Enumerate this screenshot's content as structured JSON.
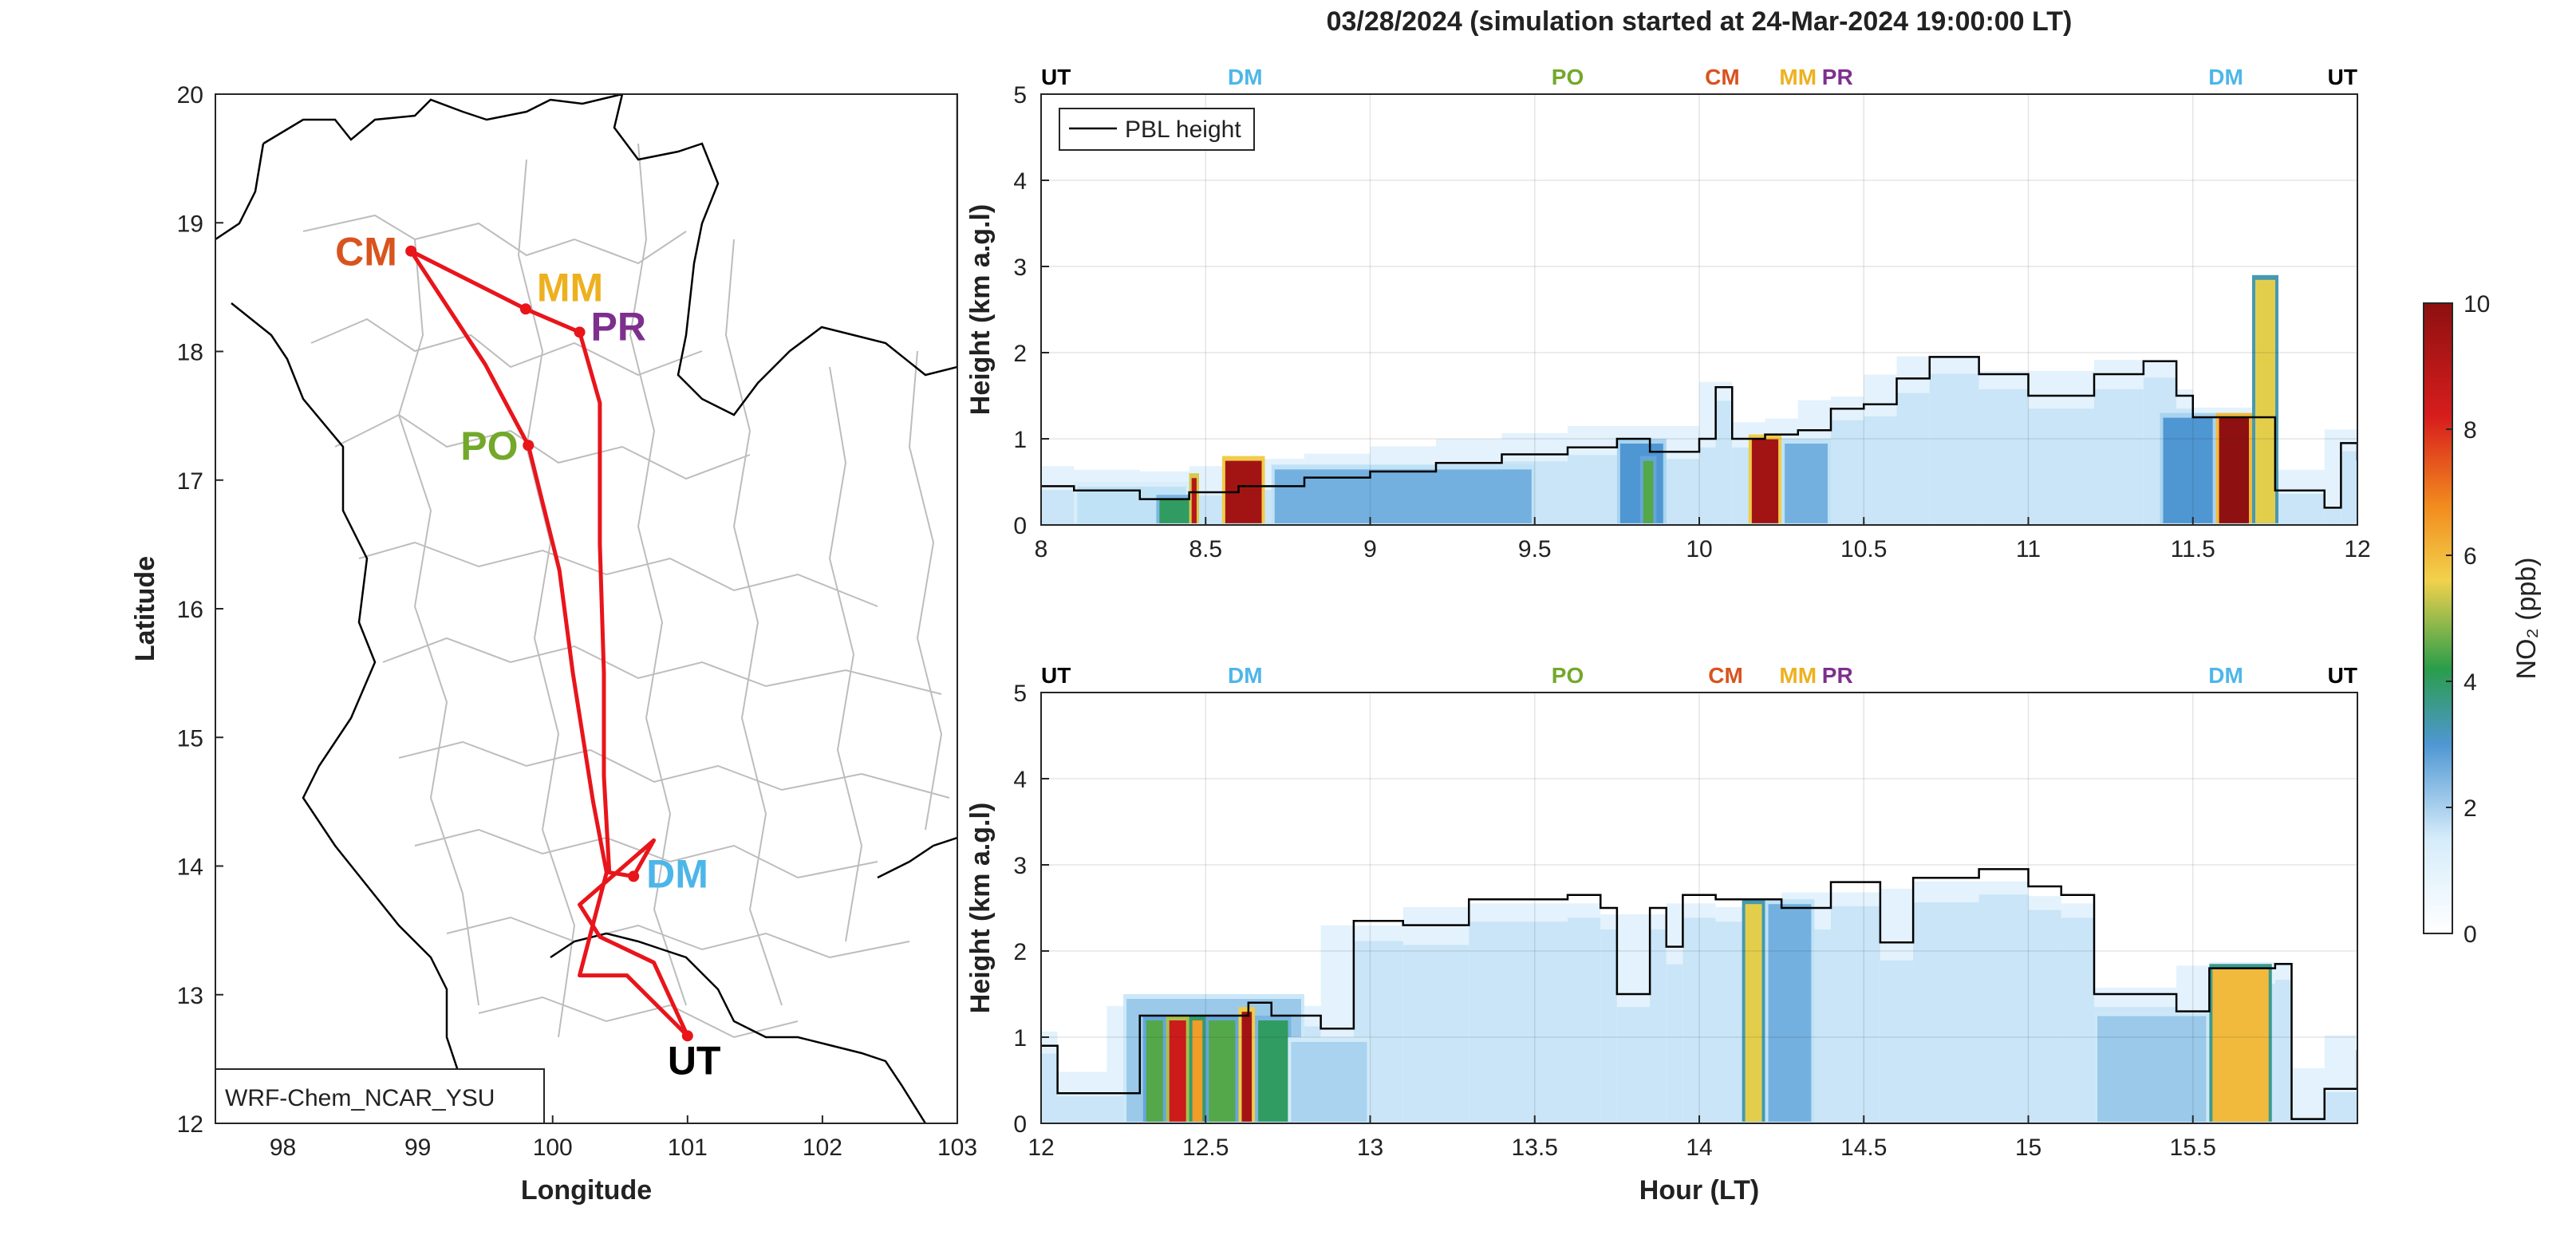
{
  "title": "03/28/2024 (simulation started at 24-Mar-2024 19:00:00 LT)",
  "colors": {
    "route": "#e8151b",
    "UT": "#000000",
    "DM": "#4db6e8",
    "PO": "#73a82a",
    "CM": "#d9531e",
    "MM": "#edb120",
    "PR": "#7e2f8e",
    "pbl_line": "#000000"
  },
  "map": {
    "xlabel": "Longitude",
    "ylabel": "Latitude",
    "xlim": [
      97.5,
      103
    ],
    "ylim": [
      12,
      20
    ],
    "xticks": [
      "98",
      "99",
      "100",
      "101",
      "102",
      "103"
    ],
    "yticks": [
      "12",
      "13",
      "14",
      "15",
      "16",
      "17",
      "18",
      "19",
      "20"
    ],
    "model_label": "WRF-Chem_NCAR_YSU",
    "sites": [
      {
        "name": "CM",
        "lon": 98.95,
        "lat": 18.78
      },
      {
        "name": "MM",
        "lon": 99.8,
        "lat": 18.33
      },
      {
        "name": "PR",
        "lon": 100.2,
        "lat": 18.15
      },
      {
        "name": "PO",
        "lon": 99.82,
        "lat": 17.27
      },
      {
        "name": "DM",
        "lon": 100.6,
        "lat": 13.92
      },
      {
        "name": "UT",
        "lon": 101.0,
        "lat": 12.68
      }
    ],
    "route": [
      [
        101.0,
        12.68
      ],
      [
        100.55,
        13.15
      ],
      [
        100.2,
        13.15
      ],
      [
        100.3,
        13.55
      ],
      [
        100.4,
        13.95
      ],
      [
        100.3,
        14.5
      ],
      [
        100.15,
        15.5
      ],
      [
        100.05,
        16.3
      ],
      [
        99.82,
        17.27
      ],
      [
        99.5,
        17.9
      ],
      [
        98.95,
        18.78
      ],
      [
        99.8,
        18.33
      ],
      [
        100.2,
        18.15
      ],
      [
        100.35,
        17.6
      ],
      [
        100.35,
        16.5
      ],
      [
        100.38,
        15.5
      ],
      [
        100.38,
        14.7
      ],
      [
        100.42,
        13.95
      ],
      [
        100.6,
        13.92
      ],
      [
        100.75,
        14.2
      ],
      [
        100.2,
        13.7
      ],
      [
        100.35,
        13.45
      ],
      [
        100.75,
        13.25
      ],
      [
        101.0,
        12.68
      ]
    ]
  },
  "chart_data": [
    {
      "type": "heatmap",
      "name": "NO2 curtain 8-12 LT",
      "xlim": [
        8,
        12
      ],
      "ylim": [
        0,
        5
      ],
      "ylabel": "Height (km a.g.l)",
      "xlabel": "",
      "xticks": [
        "8",
        "8.5",
        "9",
        "9.5",
        "10",
        "10.5",
        "11",
        "11.5",
        "12"
      ],
      "yticks": [
        "0",
        "1",
        "2",
        "3",
        "4",
        "5"
      ],
      "legend": {
        "label": "PBL height",
        "placement": "top-left"
      },
      "site_markers": [
        {
          "name": "UT",
          "x": 8.0
        },
        {
          "name": "DM",
          "x": 8.62
        },
        {
          "name": "PO",
          "x": 9.6
        },
        {
          "name": "CM",
          "x": 10.07
        },
        {
          "name": "MM",
          "x": 10.3
        },
        {
          "name": "PR",
          "x": 10.42
        },
        {
          "name": "DM",
          "x": 11.6
        },
        {
          "name": "UT",
          "x": 12.0
        }
      ],
      "pbl_height_km": [
        [
          8.0,
          0.45
        ],
        [
          8.1,
          0.4
        ],
        [
          8.3,
          0.3
        ],
        [
          8.45,
          0.38
        ],
        [
          8.6,
          0.45
        ],
        [
          8.8,
          0.55
        ],
        [
          9.0,
          0.62
        ],
        [
          9.2,
          0.72
        ],
        [
          9.4,
          0.82
        ],
        [
          9.6,
          0.9
        ],
        [
          9.75,
          1.0
        ],
        [
          9.85,
          0.85
        ],
        [
          10.0,
          1.0
        ],
        [
          10.05,
          1.6
        ],
        [
          10.1,
          1.0
        ],
        [
          10.2,
          1.05
        ],
        [
          10.3,
          1.1
        ],
        [
          10.4,
          1.35
        ],
        [
          10.5,
          1.4
        ],
        [
          10.6,
          1.7
        ],
        [
          10.7,
          1.95
        ],
        [
          10.85,
          1.75
        ],
        [
          11.0,
          1.5
        ],
        [
          11.2,
          1.75
        ],
        [
          11.35,
          1.9
        ],
        [
          11.45,
          1.5
        ],
        [
          11.5,
          1.25
        ],
        [
          11.65,
          1.25
        ],
        [
          11.75,
          0.4
        ],
        [
          11.9,
          0.2
        ],
        [
          11.95,
          0.95
        ],
        [
          12.0,
          0.75
        ]
      ],
      "no2_columns_ppb": [
        {
          "x": [
            8.1,
            8.45
          ],
          "top_km": 0.5,
          "value": 1.5
        },
        {
          "x": [
            8.35,
            8.46
          ],
          "top_km": 0.35,
          "value": 4.0
        },
        {
          "x": [
            8.45,
            8.48
          ],
          "top_km": 0.6,
          "value": 9.0
        },
        {
          "x": [
            8.55,
            8.68
          ],
          "top_km": 0.8,
          "value": 9.5
        },
        {
          "x": [
            8.7,
            9.5
          ],
          "top_km": 0.7,
          "value": 2.5
        },
        {
          "x": [
            9.75,
            9.9
          ],
          "top_km": 1.0,
          "value": 3.0
        },
        {
          "x": [
            9.82,
            9.87
          ],
          "top_km": 0.8,
          "value": 4.5
        },
        {
          "x": [
            10.15,
            10.25
          ],
          "top_km": 1.05,
          "value": 9.5
        },
        {
          "x": [
            10.25,
            10.4
          ],
          "top_km": 1.0,
          "value": 2.5
        },
        {
          "x": [
            11.4,
            11.57
          ],
          "top_km": 1.3,
          "value": 3.0
        },
        {
          "x": [
            11.57,
            11.68
          ],
          "top_km": 1.3,
          "value": 10.0
        },
        {
          "x": [
            11.68,
            11.76
          ],
          "top_km": 2.9,
          "value": 5.5
        }
      ]
    },
    {
      "type": "heatmap",
      "name": "NO2 curtain 12-16 LT",
      "xlim": [
        12,
        16
      ],
      "ylim": [
        0,
        5
      ],
      "ylabel": "Height (km a.g.l)",
      "xlabel": "Hour (LT)",
      "xticks": [
        "12",
        "12.5",
        "13",
        "13.5",
        "14",
        "14.5",
        "15",
        "15.5"
      ],
      "yticks": [
        "0",
        "1",
        "2",
        "3",
        "4",
        "5"
      ],
      "site_markers": [
        {
          "name": "UT",
          "x": 12.0
        },
        {
          "name": "DM",
          "x": 12.62
        },
        {
          "name": "PO",
          "x": 13.6
        },
        {
          "name": "CM",
          "x": 14.08
        },
        {
          "name": "MM",
          "x": 14.3
        },
        {
          "name": "PR",
          "x": 14.42
        },
        {
          "name": "DM",
          "x": 15.6
        },
        {
          "name": "UT",
          "x": 16.0
        }
      ],
      "pbl_height_km": [
        [
          12.0,
          0.9
        ],
        [
          12.05,
          0.35
        ],
        [
          12.2,
          0.35
        ],
        [
          12.3,
          1.25
        ],
        [
          12.5,
          1.25
        ],
        [
          12.63,
          1.4
        ],
        [
          12.7,
          1.25
        ],
        [
          12.85,
          1.1
        ],
        [
          12.95,
          2.35
        ],
        [
          13.1,
          2.3
        ],
        [
          13.3,
          2.6
        ],
        [
          13.6,
          2.65
        ],
        [
          13.7,
          2.5
        ],
        [
          13.75,
          1.5
        ],
        [
          13.85,
          2.5
        ],
        [
          13.9,
          2.05
        ],
        [
          13.95,
          2.65
        ],
        [
          14.05,
          2.6
        ],
        [
          14.13,
          2.6
        ],
        [
          14.25,
          2.5
        ],
        [
          14.4,
          2.8
        ],
        [
          14.55,
          2.1
        ],
        [
          14.65,
          2.85
        ],
        [
          14.85,
          2.95
        ],
        [
          15.0,
          2.75
        ],
        [
          15.1,
          2.65
        ],
        [
          15.2,
          1.5
        ],
        [
          15.45,
          1.3
        ],
        [
          15.55,
          1.8
        ],
        [
          15.75,
          1.85
        ],
        [
          15.8,
          0.05
        ],
        [
          15.9,
          0.4
        ],
        [
          16.0,
          0.85
        ]
      ],
      "no2_columns_ppb": [
        {
          "x": [
            12.25,
            12.8
          ],
          "top_km": 1.5,
          "value": 2.0
        },
        {
          "x": [
            12.31,
            12.38
          ],
          "top_km": 1.25,
          "value": 4.5
        },
        {
          "x": [
            12.38,
            12.45
          ],
          "top_km": 1.25,
          "value": 8.5
        },
        {
          "x": [
            12.45,
            12.5
          ],
          "top_km": 1.25,
          "value": 6.5
        },
        {
          "x": [
            12.5,
            12.6
          ],
          "top_km": 1.25,
          "value": 4.5
        },
        {
          "x": [
            12.6,
            12.65
          ],
          "top_km": 1.35,
          "value": 9.5
        },
        {
          "x": [
            12.65,
            12.76
          ],
          "top_km": 1.25,
          "value": 4.0
        },
        {
          "x": [
            12.75,
            13.0
          ],
          "top_km": 1.0,
          "value": 1.8
        },
        {
          "x": [
            14.13,
            14.2
          ],
          "top_km": 2.6,
          "value": 5.5
        },
        {
          "x": [
            14.2,
            14.35
          ],
          "top_km": 2.6,
          "value": 2.5
        },
        {
          "x": [
            15.2,
            15.55
          ],
          "top_km": 1.3,
          "value": 2.0
        },
        {
          "x": [
            15.55,
            15.74
          ],
          "top_km": 1.85,
          "value": 6.0
        }
      ]
    }
  ],
  "colorbar": {
    "label": "NO₂ (ppb)",
    "ticks": [
      "0",
      "2",
      "4",
      "6",
      "8",
      "10"
    ],
    "range": [
      0,
      10
    ],
    "stops": [
      "#ffffff",
      "#bfe2f6",
      "#4f97d3",
      "#2a9d4a",
      "#f1d24c",
      "#f28a1e",
      "#d71d1d",
      "#8e1010"
    ]
  }
}
